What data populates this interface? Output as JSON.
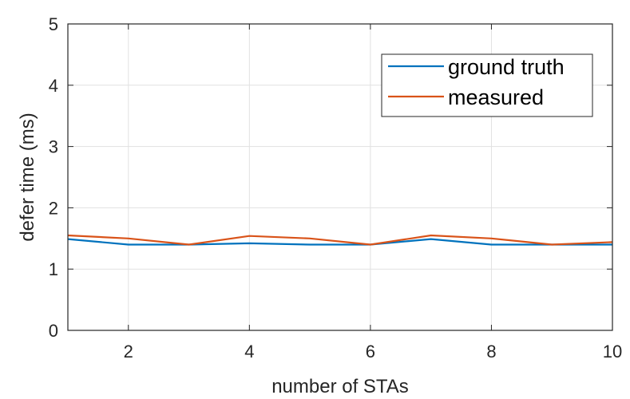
{
  "chart_data": {
    "type": "line",
    "xlabel": "number of STAs",
    "ylabel": "defer time (ms)",
    "xlim": [
      1,
      10
    ],
    "ylim": [
      0,
      5
    ],
    "xticks": [
      2,
      4,
      6,
      8,
      10
    ],
    "yticks": [
      0,
      1,
      2,
      3,
      4,
      5
    ],
    "grid": true,
    "legend_position": "top-right",
    "x": [
      1,
      2,
      3,
      4,
      5,
      6,
      7,
      8,
      9,
      10
    ],
    "series": [
      {
        "name": "ground truth",
        "color": "#0072BD",
        "values": [
          1.49,
          1.4,
          1.4,
          1.42,
          1.4,
          1.4,
          1.49,
          1.4,
          1.4,
          1.4
        ]
      },
      {
        "name": "measured",
        "color": "#D95319",
        "values": [
          1.55,
          1.5,
          1.4,
          1.54,
          1.5,
          1.4,
          1.55,
          1.5,
          1.4,
          1.44
        ]
      }
    ]
  }
}
